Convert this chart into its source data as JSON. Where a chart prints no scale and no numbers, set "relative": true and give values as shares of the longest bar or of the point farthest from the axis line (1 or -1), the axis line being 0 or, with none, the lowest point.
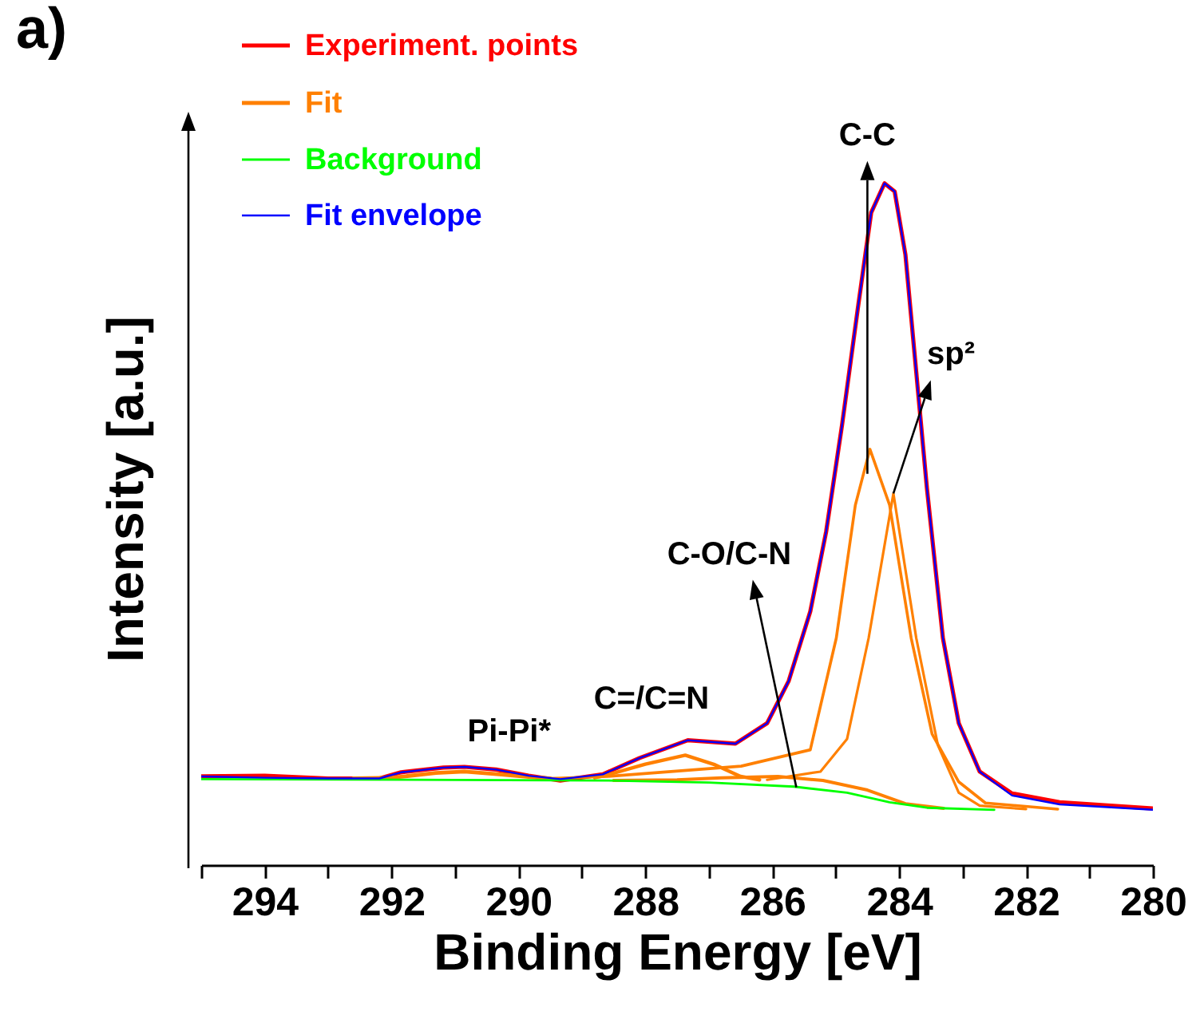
{
  "chart_data": {
    "type": "line",
    "relative": true,
    "xlabel": "Binding Energy [eV]",
    "ylabel": "Intensity [a.u.]",
    "xlim": [
      295,
      280
    ],
    "xticks": [
      {
        "value": 295,
        "label": null
      },
      294,
      {
        "value": 293,
        "label": null
      },
      292,
      {
        "value": 291,
        "label": null
      },
      290,
      {
        "value": 289,
        "label": null
      },
      288,
      {
        "value": 287,
        "label": null
      },
      286,
      {
        "value": 285,
        "label": null
      },
      284,
      {
        "value": 283,
        "label": null
      },
      282,
      {
        "value": 281,
        "label": null
      },
      280
    ],
    "legend": "top left",
    "grid": false,
    "marker": "none",
    "annotations": [
      "a)",
      {
        "text": "C-C",
        "x": 284.5,
        "y": 0.574
      },
      {
        "text": "sp²",
        "x": 284.09,
        "y": 0.545
      },
      {
        "text": "C-O/C-N",
        "x": 285.62,
        "y": 0.114
      },
      {
        "text": "C=/C=N",
        "x": 287.4,
        "y": 0.183
      },
      {
        "text": "Pi-Pi*",
        "x": 290.9,
        "y": 0.144
      }
    ],
    "series": [
      {
        "name": "Experiment. points",
        "color": "#ff0000",
        "x": [
          295,
          294,
          293,
          292.19,
          291.85,
          291.18,
          290.85,
          290.35,
          289.84,
          289.34,
          288.67,
          288.09,
          287.33,
          286.58,
          286.08,
          285.74,
          285.4,
          285.15,
          284.9,
          284.65,
          284.44,
          284.23,
          284.07,
          283.9,
          283.73,
          283.56,
          283.31,
          283.06,
          282.73,
          282.22,
          281.47,
          280
        ],
        "values": [
          0.13,
          0.131,
          0.127,
          0.127,
          0.136,
          0.143,
          0.144,
          0.14,
          0.131,
          0.124,
          0.133,
          0.157,
          0.183,
          0.178,
          0.208,
          0.27,
          0.372,
          0.489,
          0.645,
          0.817,
          0.957,
          1.0,
          0.988,
          0.895,
          0.723,
          0.551,
          0.333,
          0.208,
          0.137,
          0.105,
          0.092,
          0.083
        ]
      },
      {
        "name": "Fit",
        "color": "#ff8000",
        "x": [
          292.6,
          292,
          291.3,
          290.85,
          290.3,
          289.7,
          289.5
        ],
        "values": [
          0.127,
          0.128,
          0.135,
          0.137,
          0.133,
          0.128,
          0.127
        ]
      },
      {
        "color": "#ff8000",
        "x": [
          288.8,
          288.6,
          288,
          287.37,
          286.9,
          286.5,
          286.2
        ],
        "values": [
          0.128,
          0.132,
          0.148,
          0.161,
          0.147,
          0.13,
          0.125
        ]
      },
      {
        "color": "#ff8000",
        "x": [
          288.5,
          287.5,
          286.8,
          285.91,
          285.2,
          284.5,
          283.9,
          283.3
        ],
        "values": [
          0.124,
          0.125,
          0.128,
          0.13,
          0.124,
          0.11,
          0.09,
          0.083
        ]
      },
      {
        "color": "#ff8000",
        "x": [
          289.5,
          288.59,
          286.49,
          285.4,
          284.99,
          284.69,
          284.46,
          284.15,
          283.81,
          283.48,
          283.06,
          282.64,
          281.5
        ],
        "values": [
          0.127,
          0.13,
          0.145,
          0.169,
          0.333,
          0.528,
          0.61,
          0.528,
          0.333,
          0.192,
          0.122,
          0.091,
          0.082
        ]
      },
      {
        "color": "#ff8000",
        "x": [
          286.08,
          285.24,
          284.82,
          284.48,
          284.09,
          283.73,
          283.39,
          283.06,
          282.73,
          282
        ],
        "values": [
          0.125,
          0.137,
          0.185,
          0.333,
          0.545,
          0.333,
          0.176,
          0.106,
          0.087,
          0.082
        ]
      },
      {
        "name": "Background",
        "color": "#00ff00",
        "x": [
          295,
          288.6,
          287,
          285.66,
          284.82,
          284.15,
          283.56,
          282.5
        ],
        "values": [
          0.126,
          0.124,
          0.121,
          0.115,
          0.106,
          0.092,
          0.084,
          0.081
        ]
      },
      {
        "name": "Fit envelope",
        "color": "#0000ff",
        "x": [
          295,
          294,
          293,
          292.19,
          291.85,
          291.18,
          290.85,
          290.35,
          289.84,
          289.34,
          288.67,
          288.09,
          287.33,
          286.58,
          286.08,
          285.74,
          285.4,
          285.15,
          284.9,
          284.65,
          284.44,
          284.23,
          284.07,
          283.9,
          283.73,
          283.56,
          283.31,
          283.06,
          282.73,
          282.22,
          281.47,
          280
        ],
        "values": [
          0.13,
          0.128,
          0.127,
          0.127,
          0.136,
          0.143,
          0.144,
          0.14,
          0.131,
          0.126,
          0.133,
          0.157,
          0.183,
          0.178,
          0.208,
          0.27,
          0.372,
          0.489,
          0.645,
          0.817,
          0.957,
          1.0,
          0.988,
          0.895,
          0.723,
          0.551,
          0.333,
          0.208,
          0.137,
          0.102,
          0.089,
          0.081
        ]
      }
    ]
  }
}
